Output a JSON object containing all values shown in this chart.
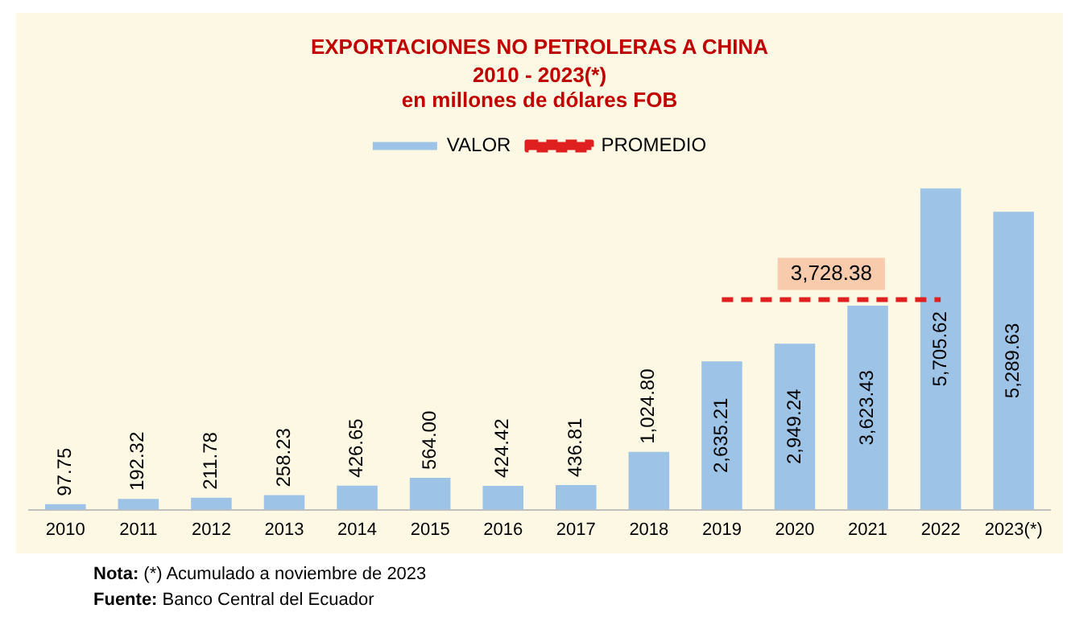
{
  "chart_data": {
    "type": "bar",
    "title": "EXPORTACIONES NO PETROLERAS A CHINA",
    "subtitle": "2010 - 2023(*)\nen millones de dólares FOB",
    "categories": [
      "2010",
      "2011",
      "2012",
      "2013",
      "2014",
      "2015",
      "2016",
      "2017",
      "2018",
      "2019",
      "2020",
      "2021",
      "2022",
      "2023(*)"
    ],
    "series": [
      {
        "name": "VALOR",
        "color": "#9dc3e6",
        "values": [
          97.75,
          192.32,
          211.78,
          258.23,
          426.65,
          564.0,
          424.42,
          436.81,
          1024.8,
          2635.21,
          2949.24,
          3623.43,
          5705.62,
          5289.63
        ],
        "value_labels": [
          "97.75",
          "192.32",
          "211.78",
          "258.23",
          "426.65",
          "564.00",
          "424.42",
          "436.81",
          "1,024.80",
          "2,635.21",
          "2,949.24",
          "3,623.43",
          "5,705.62",
          "5,289.63"
        ]
      },
      {
        "name": "PROMEDIO",
        "type": "line",
        "color": "#e02020",
        "line_style": "dashed",
        "marker": "none",
        "values": [
          null,
          null,
          null,
          null,
          null,
          null,
          null,
          null,
          null,
          3728.38,
          3728.38,
          3728.38,
          3728.38,
          null
        ]
      }
    ],
    "tick_labels": "x",
    "grid": false,
    "legend": "top",
    "annotations": [
      {
        "text": "3,728.38",
        "y": 3728.38
      },
      "Nota: (*) Acumulado a noviembre de 2023",
      "Fuente: Banco Central del Ecuador"
    ]
  }
}
